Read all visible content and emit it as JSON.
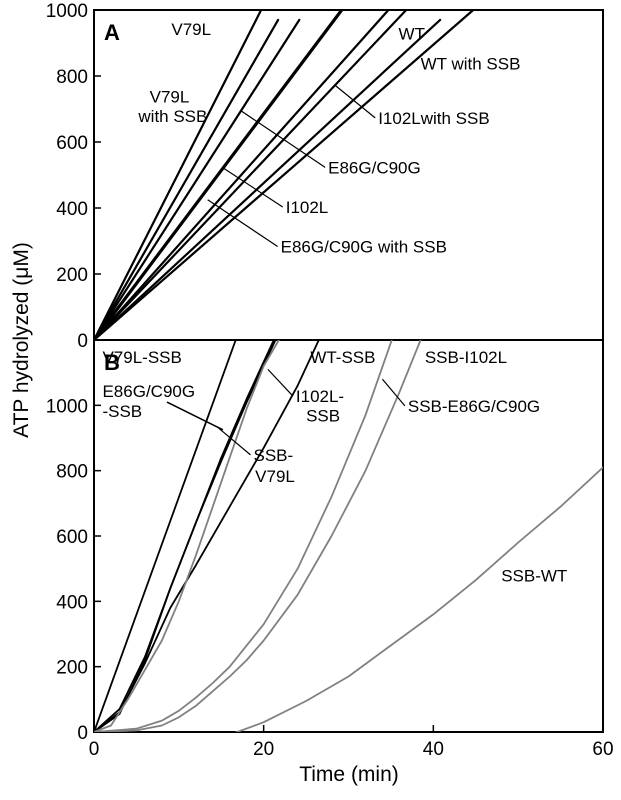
{
  "figure": {
    "ylabel": "ATP hydrolyzed (μM)",
    "xlabel": "Time (min)"
  },
  "chart_data": [
    {
      "type": "line",
      "panel_label": "A",
      "xlabel": "",
      "ylabel": "ATP hydrolyzed (μM)",
      "xlim": [
        0,
        60
      ],
      "ylim": [
        0,
        1000
      ],
      "xticks": [],
      "yticks": [
        0,
        200,
        400,
        600,
        800,
        1000
      ],
      "grid": false,
      "series": [
        {
          "name": "V79L",
          "color": "#000000",
          "width": 2.2,
          "x": [
            0,
            19.7
          ],
          "y": [
            0,
            1000
          ]
        },
        {
          "name": "V79L with SSB",
          "color": "#000000",
          "width": 2.2,
          "x": [
            0,
            21.7
          ],
          "y": [
            0,
            970
          ]
        },
        {
          "name": "E86G/C90G",
          "color": "#000000",
          "width": 2.2,
          "x": [
            0,
            24.2
          ],
          "y": [
            0,
            970
          ]
        },
        {
          "name": "I102L",
          "color": "#000000",
          "width": 3.2,
          "x": [
            0,
            29.2
          ],
          "y": [
            0,
            1000
          ]
        },
        {
          "name": "E86G/C90G with SSB",
          "color": "#000000",
          "width": 2.2,
          "x": [
            0,
            34.7
          ],
          "y": [
            0,
            1000
          ]
        },
        {
          "name": "I102L with SSB",
          "color": "#000000",
          "width": 2.2,
          "x": [
            0,
            36.8
          ],
          "y": [
            0,
            1000
          ]
        },
        {
          "name": "WT",
          "color": "#000000",
          "width": 2.2,
          "x": [
            0,
            40.8
          ],
          "y": [
            0,
            970
          ]
        },
        {
          "name": "WT with SSB",
          "color": "#000000",
          "width": 2.2,
          "x": [
            0,
            44.7
          ],
          "y": [
            0,
            1000
          ]
        }
      ],
      "annotations": [
        {
          "text": "V79L",
          "target": "V79L",
          "x": 13.8,
          "y": 925,
          "anchor": "end",
          "line_to": null
        },
        {
          "text": "V79L",
          "target": "V79L with SSB",
          "x": 8.9,
          "y": 720,
          "anchor": "middle",
          "line_to": null
        },
        {
          "text": "with SSB",
          "target": "V79L with SSB",
          "x": 9.3,
          "y": 660,
          "anchor": "middle",
          "line_to": null
        },
        {
          "text": "WT",
          "target": "WT",
          "x": 35.9,
          "y": 910,
          "anchor": "start",
          "line_to": null
        },
        {
          "text": "WT with SSB",
          "target": "WT with SSB",
          "x": 38.5,
          "y": 820,
          "anchor": "start",
          "line_to": null
        },
        {
          "text": "I102Lwith SSB",
          "target": "I102L with SSB",
          "x": 33.5,
          "y": 655,
          "anchor": "start",
          "line_to": [
            28.5,
            770
          ]
        },
        {
          "text": "E86G/C90G",
          "target": "E86G/C90G",
          "x": 27.6,
          "y": 505,
          "anchor": "start",
          "line_to": [
            17.3,
            695
          ]
        },
        {
          "text": "I102L",
          "target": "I102L",
          "x": 22.6,
          "y": 385,
          "anchor": "start",
          "line_to": [
            15.3,
            520
          ]
        },
        {
          "text": "E86G/C90G with SSB",
          "target": "E86G/C90G with SSB",
          "x": 22.0,
          "y": 265,
          "anchor": "start",
          "line_to": [
            13.4,
            425
          ]
        }
      ]
    },
    {
      "type": "line",
      "panel_label": "B",
      "xlabel": "Time (min)",
      "ylabel": "ATP hydrolyzed (μM)",
      "xlim": [
        0,
        60
      ],
      "ylim": [
        0,
        1200
      ],
      "xticks": [
        0,
        20,
        40,
        60
      ],
      "yticks": [
        0,
        200,
        400,
        600,
        800,
        1000
      ],
      "grid": false,
      "series": [
        {
          "name": "V79L-SSB",
          "color": "#000000",
          "width": 1.8,
          "x": [
            0,
            16.7
          ],
          "y": [
            0,
            1200
          ]
        },
        {
          "name": "E86G/C90G-SSB",
          "color": "#000000",
          "width": 1.8,
          "x": [
            0,
            3,
            6,
            9,
            12,
            15,
            18,
            21.2
          ],
          "y": [
            0,
            55,
            220,
            440,
            640,
            840,
            1020,
            1200
          ]
        },
        {
          "name": "I102L-SSB",
          "color": "#000000",
          "width": 1.8,
          "x": [
            0,
            3,
            6,
            9,
            12,
            15,
            18,
            21.4
          ],
          "y": [
            0,
            70,
            230,
            440,
            640,
            830,
            1010,
            1200
          ]
        },
        {
          "name": "WT-SSB",
          "color": "#000000",
          "width": 1.8,
          "x": [
            0,
            3,
            6,
            9,
            12,
            16,
            20,
            24,
            26.5
          ],
          "y": [
            0,
            60,
            210,
            380,
            510,
            690,
            870,
            1060,
            1200
          ]
        },
        {
          "name": "SSB-V79L",
          "color": "#808080",
          "width": 1.8,
          "x": [
            0,
            2,
            4,
            6,
            8,
            10,
            12,
            14,
            16,
            18,
            20,
            21.8
          ],
          "y": [
            0,
            20,
            100,
            190,
            280,
            400,
            540,
            690,
            840,
            990,
            1120,
            1200
          ]
        },
        {
          "name": "SSB-E86G/C90G",
          "color": "#808080",
          "width": 1.8,
          "x": [
            0,
            5,
            8,
            10,
            12,
            14,
            16,
            18,
            20,
            24,
            28,
            32,
            35.1
          ],
          "y": [
            0,
            10,
            35,
            65,
            105,
            150,
            200,
            265,
            330,
            500,
            720,
            970,
            1200
          ]
        },
        {
          "name": "SSB-I102L",
          "color": "#808080",
          "width": 1.8,
          "x": [
            0,
            5,
            8,
            10,
            12,
            14,
            16,
            18,
            20,
            24,
            28,
            32,
            36,
            38.5
          ],
          "y": [
            0,
            5,
            20,
            45,
            80,
            125,
            170,
            220,
            280,
            420,
            600,
            800,
            1040,
            1200
          ]
        },
        {
          "name": "SSB-WT",
          "color": "#808080",
          "width": 1.8,
          "x": [
            0,
            2,
            5,
            9,
            12,
            15,
            20,
            25,
            30,
            35,
            40,
            45,
            50,
            55,
            60
          ],
          "y": [
            0,
            -8,
            -25,
            -38,
            -35,
            -18,
            30,
            95,
            170,
            265,
            360,
            465,
            580,
            690,
            810
          ]
        }
      ],
      "annotations": [
        {
          "text": "V79L-SSB",
          "target": "V79L-SSB",
          "x": 1.0,
          "y": 1130,
          "anchor": "start",
          "line_to": null
        },
        {
          "text": "E86G/C90G",
          "target": "E86G/C90G-SSB",
          "x": 1.0,
          "y": 1025,
          "anchor": "start",
          "line_to": null
        },
        {
          "text": "-SSB",
          "target": "E86G/C90G-SSB",
          "x": 1.0,
          "y": 965,
          "anchor": "start",
          "line_to": null
        },
        {
          "text": "WT-SSB",
          "target": "WT-SSB",
          "x": 25.5,
          "y": 1130,
          "anchor": "start",
          "line_to": null
        },
        {
          "text": "SSB-I102L",
          "target": "SSB-I102L",
          "x": 39.0,
          "y": 1130,
          "anchor": "start",
          "line_to": null
        },
        {
          "text": "I102L-",
          "target": "I102L-SSB",
          "x": 23.8,
          "y": 1010,
          "anchor": "start",
          "line_to": [
            20.5,
            1110
          ]
        },
        {
          "text": "SSB",
          "target": "I102L-SSB",
          "x": 25.0,
          "y": 950,
          "anchor": "start",
          "line_to": null
        },
        {
          "text": "SSB-",
          "target": "SSB-V79L",
          "x": 18.8,
          "y": 830,
          "anchor": "start",
          "line_to": [
            14.7,
            930
          ]
        },
        {
          "text": "V79L",
          "target": "SSB-V79L",
          "x": 19.0,
          "y": 765,
          "anchor": "start",
          "line_to": null
        },
        {
          "text": "SSB-E86G/C90G",
          "target": "SSB-E86G/C90G",
          "x": 37.0,
          "y": 980,
          "anchor": "start",
          "line_to": [
            34.0,
            1080
          ]
        },
        {
          "text": "SSB-WT",
          "target": "SSB-WT",
          "x": 48.0,
          "y": 460,
          "anchor": "start",
          "line_to": null
        }
      ],
      "extra_lines": [
        {
          "label": "E86G/C90G -SSB pointer",
          "from": [
            8.6,
            1010
          ],
          "to": [
            15.2,
            925
          ]
        }
      ]
    }
  ]
}
